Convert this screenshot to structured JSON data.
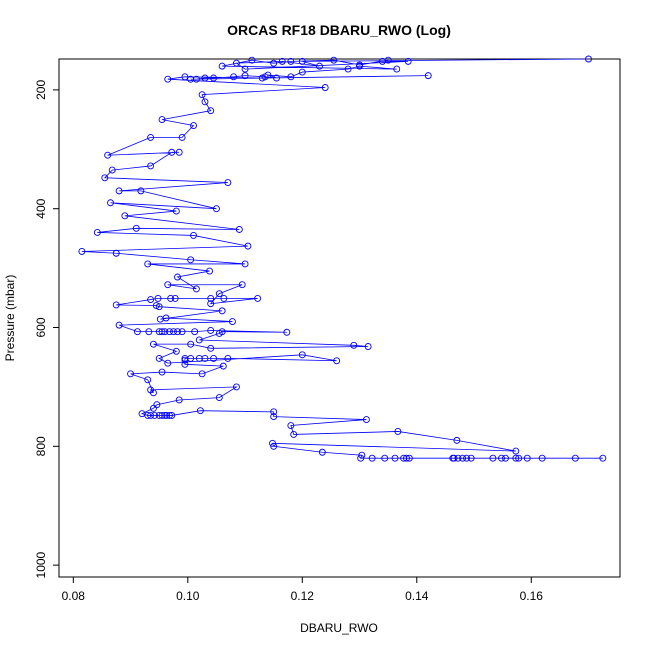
{
  "chart_data": {
    "type": "line",
    "title": "ORCAS RF18 DBARU_RWO (Log)",
    "xlabel": "DBARU_RWO",
    "ylabel": "Pressure (mbar)",
    "xlim": [
      0.0775,
      0.1755
    ],
    "ylim": [
      1020,
      148
    ],
    "y_reversed": true,
    "x_ticks": [
      0.08,
      0.1,
      0.12,
      0.14,
      0.16
    ],
    "x_tick_labels": [
      "0.08",
      "0.10",
      "0.12",
      "0.14",
      "0.16"
    ],
    "y_ticks": [
      200,
      400,
      600,
      800,
      1000
    ],
    "y_tick_labels": [
      "200",
      "400",
      "600",
      "800",
      "1000"
    ],
    "grid": false,
    "marker": "open-circle",
    "colors": {
      "series": "#0000ff",
      "axis": "#000000",
      "background": "#ffffff"
    },
    "series": [
      {
        "points": [
          [
            0.1725,
            820
          ],
          [
            0.1677,
            820
          ],
          [
            0.1619,
            820
          ],
          [
            0.1593,
            820
          ],
          [
            0.1578,
            820
          ],
          [
            0.1573,
            820
          ],
          [
            0.1555,
            820
          ],
          [
            0.1548,
            820
          ],
          [
            0.1533,
            820
          ],
          [
            0.1495,
            820
          ],
          [
            0.1487,
            820
          ],
          [
            0.148,
            820
          ],
          [
            0.1472,
            820
          ],
          [
            0.1465,
            820
          ],
          [
            0.1463,
            820
          ],
          [
            0.1387,
            820
          ],
          [
            0.1382,
            820
          ],
          [
            0.1377,
            820
          ],
          [
            0.1362,
            820
          ],
          [
            0.1344,
            820
          ],
          [
            0.1322,
            820
          ],
          [
            0.1302,
            820
          ],
          [
            0.1304,
            815
          ],
          [
            0.1235,
            810
          ],
          [
            0.115,
            800
          ],
          [
            0.1148,
            795
          ],
          [
            0.1573,
            808
          ],
          [
            0.147,
            790
          ],
          [
            0.1367,
            775
          ],
          [
            0.1185,
            780
          ],
          [
            0.118,
            765
          ],
          [
            0.1312,
            755
          ],
          [
            0.115,
            750
          ],
          [
            0.115,
            742
          ],
          [
            0.1022,
            740
          ],
          [
            0.0972,
            748
          ],
          [
            0.0968,
            748
          ],
          [
            0.0963,
            748
          ],
          [
            0.096,
            748
          ],
          [
            0.0955,
            748
          ],
          [
            0.095,
            748
          ],
          [
            0.0942,
            748
          ],
          [
            0.0935,
            748
          ],
          [
            0.093,
            748
          ],
          [
            0.092,
            745
          ],
          [
            0.094,
            736
          ],
          [
            0.0946,
            730
          ],
          [
            0.0985,
            722
          ],
          [
            0.1055,
            718
          ],
          [
            0.1085,
            700
          ],
          [
            0.0935,
            705
          ],
          [
            0.094,
            710
          ],
          [
            0.093,
            688
          ],
          [
            0.09,
            678
          ],
          [
            0.0955,
            675
          ],
          [
            0.1025,
            678
          ],
          [
            0.1062,
            665
          ],
          [
            0.0995,
            662
          ],
          [
            0.0995,
            655
          ],
          [
            0.0995,
            652
          ],
          [
            0.1005,
            652
          ],
          [
            0.102,
            652
          ],
          [
            0.103,
            652
          ],
          [
            0.1045,
            652
          ],
          [
            0.107,
            652
          ],
          [
            0.126,
            656
          ],
          [
            0.12,
            646
          ],
          [
            0.0965,
            660
          ],
          [
            0.095,
            652
          ],
          [
            0.098,
            640
          ],
          [
            0.094,
            628
          ],
          [
            0.1005,
            628
          ],
          [
            0.104,
            635
          ],
          [
            0.1315,
            632
          ],
          [
            0.129,
            630
          ],
          [
            0.102,
            621
          ],
          [
            0.1055,
            610
          ],
          [
            0.106,
            607
          ],
          [
            0.1173,
            608
          ],
          [
            0.104,
            605
          ],
          [
            0.1012,
            607
          ],
          [
            0.099,
            607
          ],
          [
            0.0982,
            607
          ],
          [
            0.0975,
            607
          ],
          [
            0.0968,
            607
          ],
          [
            0.096,
            607
          ],
          [
            0.0955,
            607
          ],
          [
            0.095,
            607
          ],
          [
            0.0932,
            607
          ],
          [
            0.0912,
            607
          ],
          [
            0.088,
            596
          ],
          [
            0.1078,
            590
          ],
          [
            0.0962,
            584
          ],
          [
            0.0952,
            586
          ],
          [
            0.106,
            572
          ],
          [
            0.095,
            565
          ],
          [
            0.0945,
            563
          ],
          [
            0.0875,
            562
          ],
          [
            0.0935,
            553
          ],
          [
            0.0948,
            551
          ],
          [
            0.097,
            551
          ],
          [
            0.0978,
            551
          ],
          [
            0.104,
            551
          ],
          [
            0.1063,
            551
          ],
          [
            0.1122,
            551
          ],
          [
            0.104,
            560
          ],
          [
            0.1055,
            543
          ],
          [
            0.1095,
            528
          ],
          [
            0.0965,
            528
          ],
          [
            0.1015,
            535
          ],
          [
            0.0982,
            515
          ],
          [
            0.1038,
            505
          ],
          [
            0.093,
            493
          ],
          [
            0.11,
            493
          ],
          [
            0.1005,
            486
          ],
          [
            0.0875,
            475
          ],
          [
            0.0815,
            472
          ],
          [
            0.1105,
            463
          ],
          [
            0.101,
            445
          ],
          [
            0.0842,
            440
          ],
          [
            0.091,
            433
          ],
          [
            0.109,
            435
          ],
          [
            0.089,
            412
          ],
          [
            0.098,
            404
          ],
          [
            0.0865,
            390
          ],
          [
            0.105,
            400
          ],
          [
            0.0918,
            370
          ],
          [
            0.088,
            370
          ],
          [
            0.107,
            356
          ],
          [
            0.0855,
            348
          ],
          [
            0.0868,
            335
          ],
          [
            0.0935,
            328
          ],
          [
            0.0972,
            305
          ],
          [
            0.0985,
            305
          ],
          [
            0.086,
            310
          ],
          [
            0.0935,
            280
          ],
          [
            0.099,
            280
          ],
          [
            0.101,
            260
          ],
          [
            0.0955,
            250
          ],
          [
            0.104,
            235
          ],
          [
            0.103,
            220
          ],
          [
            0.1025,
            208
          ],
          [
            0.124,
            196
          ],
          [
            0.0965,
            182
          ],
          [
            0.0995,
            178
          ],
          [
            0.113,
            180
          ],
          [
            0.142,
            176
          ],
          [
            0.1005,
            182
          ],
          [
            0.1015,
            182
          ],
          [
            0.103,
            180
          ],
          [
            0.1045,
            180
          ],
          [
            0.108,
            178
          ],
          [
            0.11,
            176
          ],
          [
            0.1135,
            178
          ],
          [
            0.1155,
            180
          ],
          [
            0.114,
            175
          ],
          [
            0.118,
            178
          ],
          [
            0.12,
            170
          ],
          [
            0.128,
            165
          ],
          [
            0.13,
            160
          ],
          [
            0.1365,
            165
          ],
          [
            0.106,
            160
          ],
          [
            0.1112,
            150
          ],
          [
            0.115,
            155
          ],
          [
            0.118,
            152
          ],
          [
            0.1255,
            150
          ],
          [
            0.13,
            158
          ],
          [
            0.135,
            150
          ],
          [
            0.134,
            152
          ],
          [
            0.1385,
            152
          ],
          [
            0.11,
            165
          ],
          [
            0.1085,
            155
          ],
          [
            0.1165,
            152
          ],
          [
            0.123,
            160
          ],
          [
            0.12,
            152
          ],
          [
            0.17,
            148
          ]
        ]
      }
    ]
  }
}
